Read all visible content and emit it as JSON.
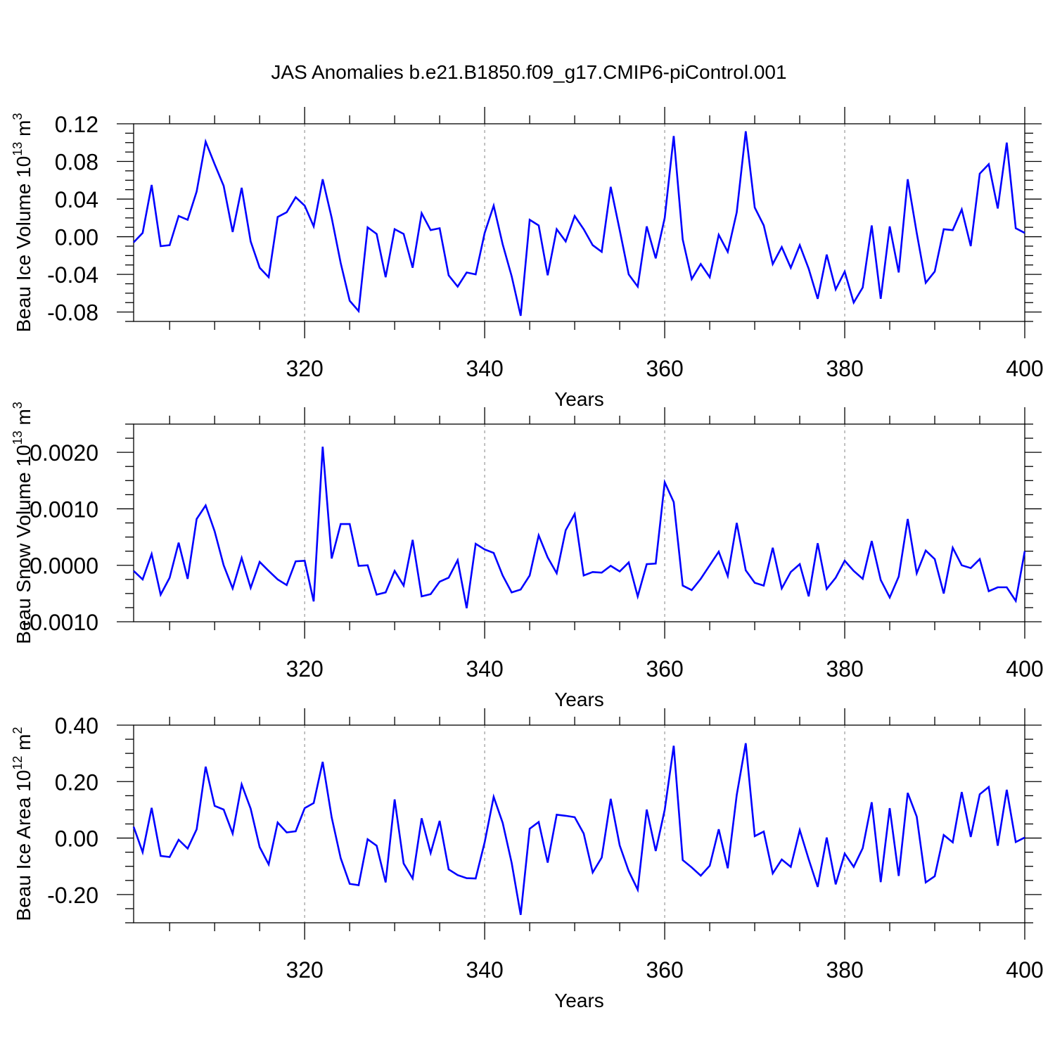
{
  "title": "JAS Anomalies b.e21.B1850.f09_g17.CMIP6-piControl.001",
  "colors": {
    "line": "#0000ff",
    "axis": "#000000",
    "grid": "#a0a0a0"
  },
  "chart_data": [
    {
      "type": "line",
      "ylabel_main": "Beau Ice Volume 10",
      "ylabel_exp": "13",
      "ylabel_unit": " m",
      "ylabel_unit_exp": "3",
      "xlabel": "Years",
      "xlim": [
        301,
        400
      ],
      "ylim": [
        -0.09,
        0.12
      ],
      "yticks": [
        -0.08,
        -0.04,
        0.0,
        0.04,
        0.08,
        0.12
      ],
      "ytick_labels": [
        "-0.08",
        "-0.04",
        "0.00",
        "0.04",
        "0.08",
        "0.12"
      ],
      "xticks": [
        320,
        340,
        360,
        380,
        400
      ],
      "xtick_labels": [
        "320",
        "340",
        "360",
        "380",
        "400"
      ],
      "grid_x": [
        320,
        340,
        360,
        380
      ],
      "x_start": 301,
      "values": [
        -0.006,
        0.004,
        0.055,
        -0.01,
        -0.009,
        0.022,
        0.018,
        0.048,
        0.101,
        0.077,
        0.054,
        0.005,
        0.052,
        -0.005,
        -0.033,
        -0.043,
        0.021,
        0.026,
        0.042,
        0.033,
        0.011,
        0.061,
        0.02,
        -0.028,
        -0.068,
        -0.079,
        0.01,
        0.003,
        -0.043,
        0.008,
        0.003,
        -0.033,
        0.025,
        0.007,
        0.009,
        -0.041,
        -0.053,
        -0.038,
        -0.04,
        0.004,
        0.033,
        -0.008,
        -0.042,
        -0.084,
        0.018,
        0.012,
        -0.041,
        0.008,
        -0.005,
        0.022,
        0.008,
        -0.009,
        -0.016,
        0.053,
        0.007,
        -0.04,
        -0.053,
        0.011,
        -0.023,
        0.02,
        0.107,
        -0.003,
        -0.045,
        -0.029,
        -0.043,
        0.002,
        -0.016,
        0.026,
        0.112,
        0.031,
        0.012,
        -0.029,
        -0.011,
        -0.033,
        -0.009,
        -0.034,
        -0.066,
        -0.019,
        -0.056,
        -0.037,
        -0.07,
        -0.054,
        0.012,
        -0.066,
        0.011,
        -0.038,
        0.061,
        0.004,
        -0.049,
        -0.037,
        0.008,
        0.007,
        0.029,
        -0.01,
        0.067,
        0.077,
        0.03,
        0.1,
        0.009,
        0.004
      ]
    },
    {
      "type": "line",
      "ylabel_main": "Beau Snow Volume 10",
      "ylabel_exp": "13",
      "ylabel_unit": " m",
      "ylabel_unit_exp": "3",
      "xlabel": "Years",
      "xlim": [
        301,
        400
      ],
      "ylim": [
        -0.001,
        0.0025
      ],
      "yticks": [
        -0.001,
        0.0,
        0.001,
        0.002
      ],
      "ytick_labels": [
        "-0.0010",
        "0.0000",
        "0.0010",
        "0.0020"
      ],
      "xticks": [
        320,
        340,
        360,
        380,
        400
      ],
      "xtick_labels": [
        "320",
        "340",
        "360",
        "380",
        "400"
      ],
      "grid_x": [
        320,
        340,
        360,
        380
      ],
      "x_start": 301,
      "values": [
        -0.0001,
        -0.00025,
        0.0002,
        -0.00052,
        -0.00022,
        0.0004,
        -0.00024,
        0.00082,
        0.00106,
        0.0006,
        0.0,
        -0.00041,
        0.00013,
        -0.0004,
        6e-05,
        -0.0001,
        -0.00025,
        -0.00035,
        7e-05,
        8e-05,
        -0.00064,
        0.0021,
        0.00012,
        0.00073,
        0.00073,
        -1e-05,
        0.0,
        -0.00052,
        -0.00048,
        -0.0001,
        -0.00036,
        0.00045,
        -0.00055,
        -0.00051,
        -0.00029,
        -0.00022,
        9e-05,
        -0.00076,
        0.00038,
        0.00028,
        0.00022,
        -0.00018,
        -0.00048,
        -0.00043,
        -0.00018,
        0.00053,
        0.00014,
        -0.00014,
        0.00062,
        0.00091,
        -0.00018,
        -0.00012,
        -0.00013,
        -1e-05,
        -0.00011,
        5e-05,
        -0.00055,
        2e-05,
        3e-05,
        0.00147,
        0.00112,
        -0.00036,
        -0.00044,
        -0.00024,
        0.0,
        0.00024,
        -0.00019,
        0.00075,
        -9e-05,
        -0.00031,
        -0.00036,
        0.00031,
        -0.00041,
        -0.00012,
        2e-05,
        -0.00055,
        0.00039,
        -0.00042,
        -0.00022,
        8e-05,
        -0.0001,
        -0.00024,
        0.00043,
        -0.00026,
        -0.00057,
        -0.0002,
        0.00082,
        -0.00014,
        0.00026,
        0.00011,
        -0.0005,
        0.00031,
        0.0,
        -5e-05,
        0.00011,
        -0.00046,
        -0.00039,
        -0.00039,
        -0.00063,
        0.00025
      ]
    },
    {
      "type": "line",
      "ylabel_main": "Beau Ice Area 10",
      "ylabel_exp": "12",
      "ylabel_unit": " m",
      "ylabel_unit_exp": "2",
      "xlabel": "Years",
      "xlim": [
        301,
        400
      ],
      "ylim": [
        -0.3,
        0.4
      ],
      "yticks": [
        -0.2,
        0.0,
        0.2,
        0.4
      ],
      "ytick_labels": [
        "-0.20",
        "0.00",
        "0.20",
        "0.40"
      ],
      "xticks": [
        320,
        340,
        360,
        380,
        400
      ],
      "xtick_labels": [
        "320",
        "340",
        "360",
        "380",
        "400"
      ],
      "grid_x": [
        320,
        340,
        360,
        380
      ],
      "x_start": 301,
      "values": [
        0.04,
        -0.05,
        0.107,
        -0.063,
        -0.067,
        -0.006,
        -0.037,
        0.031,
        0.253,
        0.114,
        0.101,
        0.016,
        0.19,
        0.104,
        -0.032,
        -0.093,
        0.055,
        0.02,
        0.024,
        0.106,
        0.124,
        0.27,
        0.073,
        -0.071,
        -0.162,
        -0.167,
        -0.004,
        -0.027,
        -0.157,
        0.137,
        -0.09,
        -0.143,
        0.07,
        -0.053,
        0.061,
        -0.111,
        -0.131,
        -0.142,
        -0.143,
        -0.015,
        0.146,
        0.054,
        -0.088,
        -0.272,
        0.033,
        0.057,
        -0.087,
        0.083,
        0.079,
        0.074,
        0.016,
        -0.122,
        -0.069,
        0.139,
        -0.026,
        -0.117,
        -0.183,
        0.101,
        -0.046,
        0.1,
        0.327,
        -0.078,
        -0.104,
        -0.133,
        -0.098,
        0.031,
        -0.107,
        0.153,
        0.336,
        0.007,
        0.023,
        -0.125,
        -0.076,
        -0.102,
        0.028,
        -0.075,
        -0.173,
        0.002,
        -0.164,
        -0.055,
        -0.102,
        -0.036,
        0.127,
        -0.156,
        0.106,
        -0.134,
        0.16,
        0.076,
        -0.157,
        -0.135,
        0.011,
        -0.015,
        0.163,
        0.004,
        0.155,
        0.181,
        -0.027,
        0.171,
        -0.014,
        0.002
      ]
    }
  ]
}
